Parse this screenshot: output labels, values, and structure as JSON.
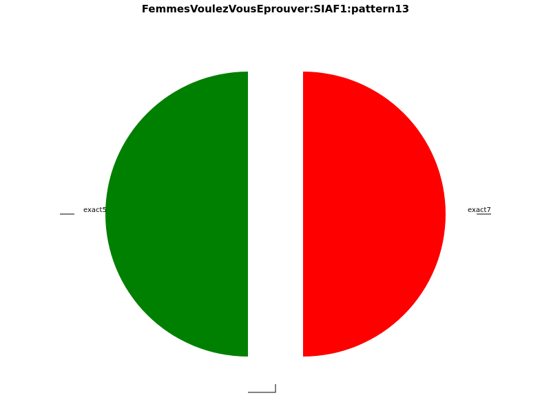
{
  "chart_data": {
    "type": "pie",
    "title": "FemmesVoulezVousEprouver:SIAF1:pattern13",
    "slices": [
      {
        "label": "exact5",
        "value": 50,
        "color": "#008000"
      },
      {
        "label": "",
        "value": 0,
        "color": "#0000ff"
      },
      {
        "label": "exact7",
        "value": 50,
        "color": "#ff0000"
      }
    ],
    "exploded": true,
    "legend": "none"
  }
}
